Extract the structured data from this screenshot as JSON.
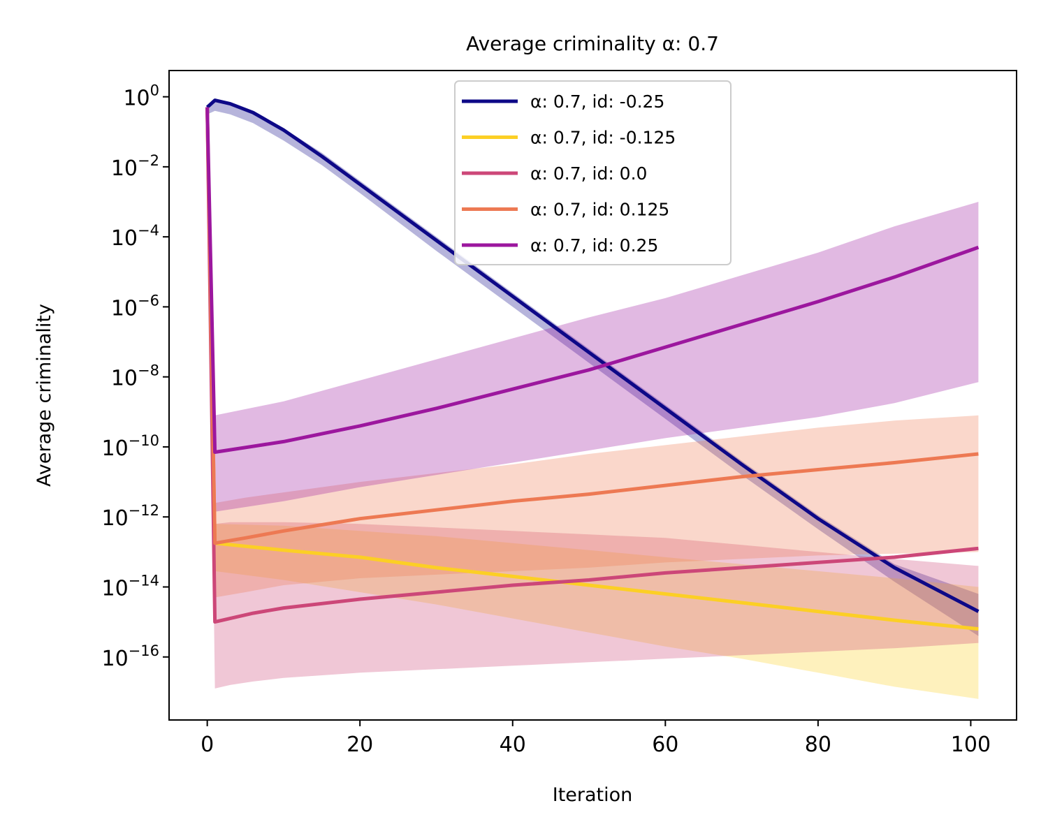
{
  "chart_data": {
    "type": "line",
    "title": "Average criminality α: 0.7",
    "xlabel": "Iteration",
    "ylabel": "Average criminality",
    "xlim": [
      -5,
      106
    ],
    "ylim_log10": [
      -17.8,
      0.75
    ],
    "yscale": "log",
    "grid": false,
    "legend_position": "upper-center",
    "x_ticks": [
      0,
      20,
      40,
      60,
      80,
      100
    ],
    "x_tick_labels": [
      "0",
      "20",
      "40",
      "60",
      "80",
      "100"
    ],
    "y_ticks_log10": [
      0,
      -2,
      -4,
      -6,
      -8,
      -10,
      -12,
      -14,
      -16
    ],
    "y_tick_labels": [
      {
        "base": "10",
        "exp": "0"
      },
      {
        "base": "10",
        "exp": "−2"
      },
      {
        "base": "10",
        "exp": "−4"
      },
      {
        "base": "10",
        "exp": "−6"
      },
      {
        "base": "10",
        "exp": "−8"
      },
      {
        "base": "10",
        "exp": "−10"
      },
      {
        "base": "10",
        "exp": "−12"
      },
      {
        "base": "10",
        "exp": "−14"
      },
      {
        "base": "10",
        "exp": "−16"
      }
    ],
    "series": [
      {
        "name": "α: 0.7, id: -0.25",
        "color": "#0d0887",
        "x": [
          0,
          1,
          3,
          6,
          10,
          15,
          20,
          30,
          40,
          50,
          60,
          70,
          80,
          90,
          101
        ],
        "log10_mean": [
          -0.3,
          -0.1,
          -0.2,
          -0.45,
          -0.95,
          -1.7,
          -2.5,
          -4.1,
          -5.7,
          -7.3,
          -8.9,
          -10.5,
          -12.05,
          -13.45,
          -14.7
        ],
        "log10_lower": [
          -0.5,
          -0.4,
          -0.5,
          -0.75,
          -1.25,
          -1.95,
          -2.75,
          -4.4,
          -6.0,
          -7.6,
          -9.2,
          -10.8,
          -12.35,
          -13.85,
          -15.4
        ],
        "log10_upper": [
          -0.3,
          -0.1,
          -0.2,
          -0.4,
          -0.9,
          -1.6,
          -2.4,
          -4.0,
          -5.6,
          -7.2,
          -8.8,
          -10.4,
          -11.95,
          -13.35,
          -14.2
        ]
      },
      {
        "name": "α: 0.7, id: -0.125",
        "color": "#fccf25",
        "x": [
          0,
          1,
          10,
          20,
          30,
          40,
          50,
          60,
          70,
          80,
          90,
          101
        ],
        "log10_mean": [
          -0.3,
          -12.75,
          -12.95,
          -13.15,
          -13.45,
          -13.7,
          -13.95,
          -14.2,
          -14.45,
          -14.7,
          -14.95,
          -15.2
        ],
        "log10_lower": [
          -0.3,
          -13.55,
          -13.8,
          -14.15,
          -14.5,
          -14.9,
          -15.3,
          -15.7,
          -16.05,
          -16.45,
          -16.85,
          -17.2
        ],
        "log10_upper": [
          -0.3,
          -12.2,
          -12.25,
          -12.4,
          -12.55,
          -12.75,
          -12.95,
          -13.15,
          -13.35,
          -13.55,
          -13.75,
          -14.0
        ]
      },
      {
        "name": "α: 0.7, id: 0.0",
        "color": "#cc4778",
        "x": [
          0,
          1,
          3,
          6,
          10,
          20,
          30,
          40,
          50,
          60,
          70,
          80,
          90,
          101
        ],
        "log10_mean": [
          -0.3,
          -15.0,
          -14.9,
          -14.75,
          -14.6,
          -14.35,
          -14.15,
          -13.95,
          -13.8,
          -13.6,
          -13.45,
          -13.3,
          -13.15,
          -12.9
        ],
        "log10_lower": [
          -0.3,
          -16.9,
          -16.8,
          -16.7,
          -16.6,
          -16.45,
          -16.35,
          -16.25,
          -16.15,
          -16.05,
          -15.95,
          -15.85,
          -15.75,
          -15.6
        ],
        "log10_upper": [
          -0.3,
          -12.2,
          -12.15,
          -12.15,
          -12.15,
          -12.2,
          -12.3,
          -12.4,
          -12.5,
          -12.6,
          -12.8,
          -13.0,
          -13.2,
          -13.4
        ]
      },
      {
        "name": "α: 0.7, id: 0.125",
        "color": "#ed7953",
        "x": [
          0,
          1,
          5,
          10,
          20,
          30,
          40,
          50,
          60,
          70,
          80,
          90,
          101
        ],
        "log10_mean": [
          -0.3,
          -12.75,
          -12.6,
          -12.4,
          -12.05,
          -11.8,
          -11.55,
          -11.35,
          -11.1,
          -10.85,
          -10.65,
          -10.45,
          -10.2
        ],
        "log10_lower": [
          -0.3,
          -14.3,
          -14.15,
          -13.95,
          -13.75,
          -13.65,
          -13.55,
          -13.45,
          -13.3,
          -13.2,
          -13.1,
          -13.05,
          -13.0
        ],
        "log10_upper": [
          -0.3,
          -11.6,
          -11.45,
          -11.3,
          -11.0,
          -10.75,
          -10.5,
          -10.2,
          -9.95,
          -9.7,
          -9.45,
          -9.25,
          -9.1
        ]
      },
      {
        "name": "α: 0.7, id: 0.25",
        "color": "#9c179e",
        "x": [
          0,
          1,
          10,
          20,
          30,
          40,
          50,
          60,
          70,
          80,
          90,
          101
        ],
        "log10_mean": [
          -0.3,
          -10.15,
          -9.85,
          -9.4,
          -8.9,
          -8.35,
          -7.8,
          -7.15,
          -6.5,
          -5.85,
          -5.15,
          -4.3
        ],
        "log10_lower": [
          -0.3,
          -11.85,
          -11.55,
          -11.15,
          -10.8,
          -10.45,
          -10.1,
          -9.75,
          -9.45,
          -9.15,
          -8.75,
          -8.15
        ],
        "log10_upper": [
          -0.3,
          -9.1,
          -8.7,
          -8.1,
          -7.5,
          -6.9,
          -6.3,
          -5.75,
          -5.1,
          -4.45,
          -3.7,
          -3.0
        ]
      }
    ]
  }
}
